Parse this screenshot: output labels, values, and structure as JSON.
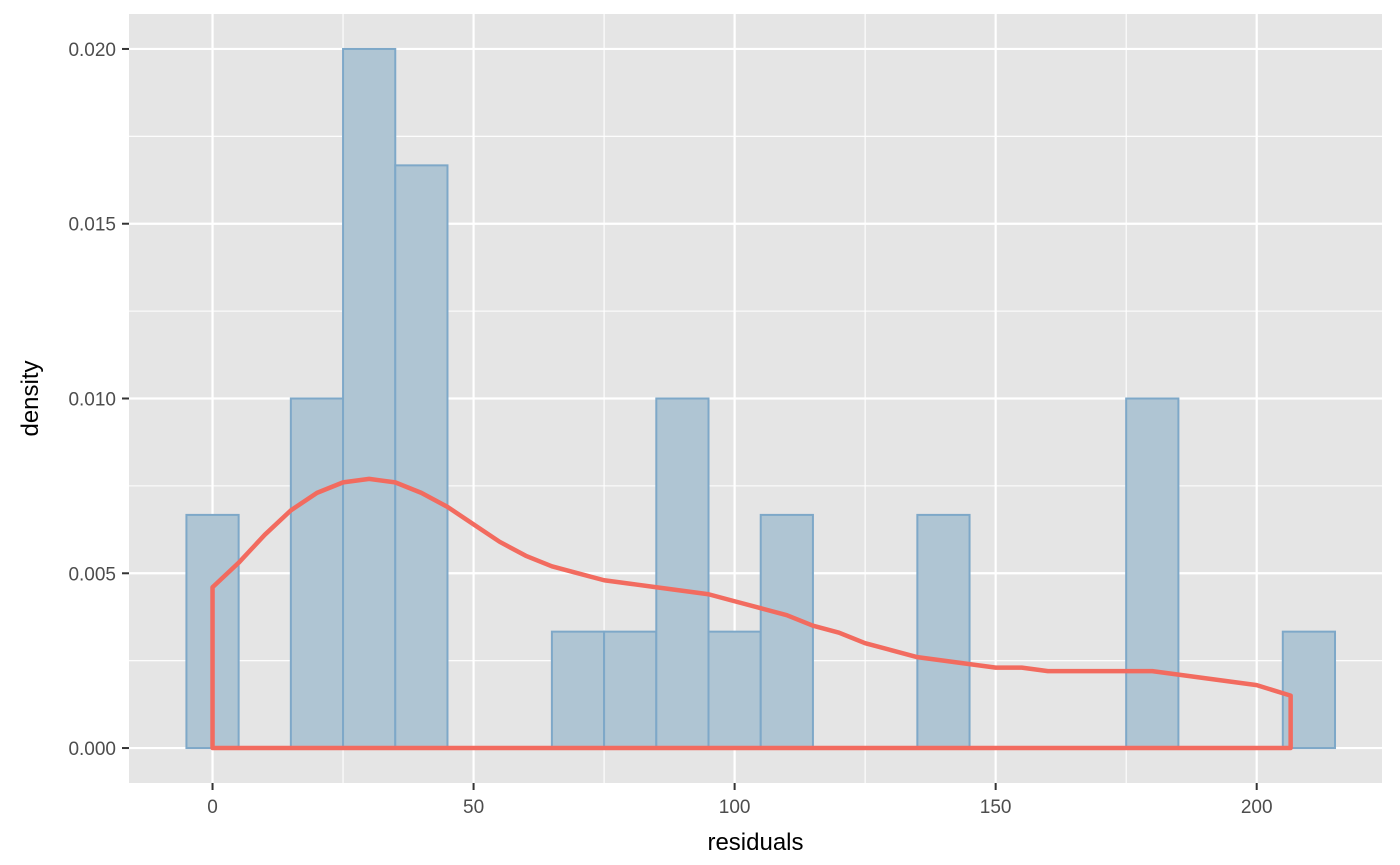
{
  "chart_data": {
    "type": "histogram",
    "xlabel": "residuals",
    "ylabel": "density",
    "xlim": [
      -16,
      224
    ],
    "ylim": [
      -0.001,
      0.021
    ],
    "x_ticks": [
      0,
      50,
      100,
      150,
      200
    ],
    "x_tick_labels": [
      "0",
      "50",
      "100",
      "150",
      "200"
    ],
    "y_ticks": [
      0.0,
      0.005,
      0.01,
      0.015,
      0.02
    ],
    "y_tick_labels": [
      "0.000",
      "0.005",
      "0.010",
      "0.015",
      "0.020"
    ],
    "grid": true,
    "bin_width": 10,
    "bins": [
      {
        "x0": -5,
        "x1": 5,
        "density": 0.00667
      },
      {
        "x0": 15,
        "x1": 25,
        "density": 0.01
      },
      {
        "x0": 25,
        "x1": 35,
        "density": 0.02
      },
      {
        "x0": 35,
        "x1": 45,
        "density": 0.01667
      },
      {
        "x0": 65,
        "x1": 75,
        "density": 0.00333
      },
      {
        "x0": 75,
        "x1": 85,
        "density": 0.00333
      },
      {
        "x0": 85,
        "x1": 95,
        "density": 0.01
      },
      {
        "x0": 95,
        "x1": 105,
        "density": 0.00333
      },
      {
        "x0": 105,
        "x1": 115,
        "density": 0.00667
      },
      {
        "x0": 135,
        "x1": 145,
        "density": 0.00667
      },
      {
        "x0": 175,
        "x1": 185,
        "density": 0.01
      },
      {
        "x0": 205,
        "x1": 215,
        "density": 0.00333
      }
    ],
    "density_curve": {
      "x": [
        0,
        5,
        10,
        15,
        20,
        25,
        30,
        35,
        40,
        45,
        50,
        55,
        60,
        65,
        70,
        75,
        80,
        85,
        90,
        95,
        100,
        105,
        110,
        115,
        120,
        125,
        130,
        135,
        140,
        145,
        150,
        155,
        160,
        165,
        170,
        175,
        180,
        185,
        190,
        195,
        200,
        206.5
      ],
      "y": [
        0.0046,
        0.0053,
        0.0061,
        0.0068,
        0.0073,
        0.0076,
        0.0077,
        0.0076,
        0.0073,
        0.0069,
        0.0064,
        0.0059,
        0.0055,
        0.0052,
        0.005,
        0.0048,
        0.0047,
        0.0046,
        0.0045,
        0.0044,
        0.0042,
        0.004,
        0.0038,
        0.0035,
        0.0033,
        0.003,
        0.0028,
        0.0026,
        0.0025,
        0.0024,
        0.0023,
        0.0023,
        0.0022,
        0.0022,
        0.0022,
        0.0022,
        0.0022,
        0.0021,
        0.002,
        0.0019,
        0.0018,
        0.0015
      ]
    },
    "colors": {
      "panel_background": "#e5e5e5",
      "grid": "#ffffff",
      "bar_fill": "#afc5d3",
      "bar_outline": "#7ea8c8",
      "curve": "#f26b5f"
    }
  }
}
